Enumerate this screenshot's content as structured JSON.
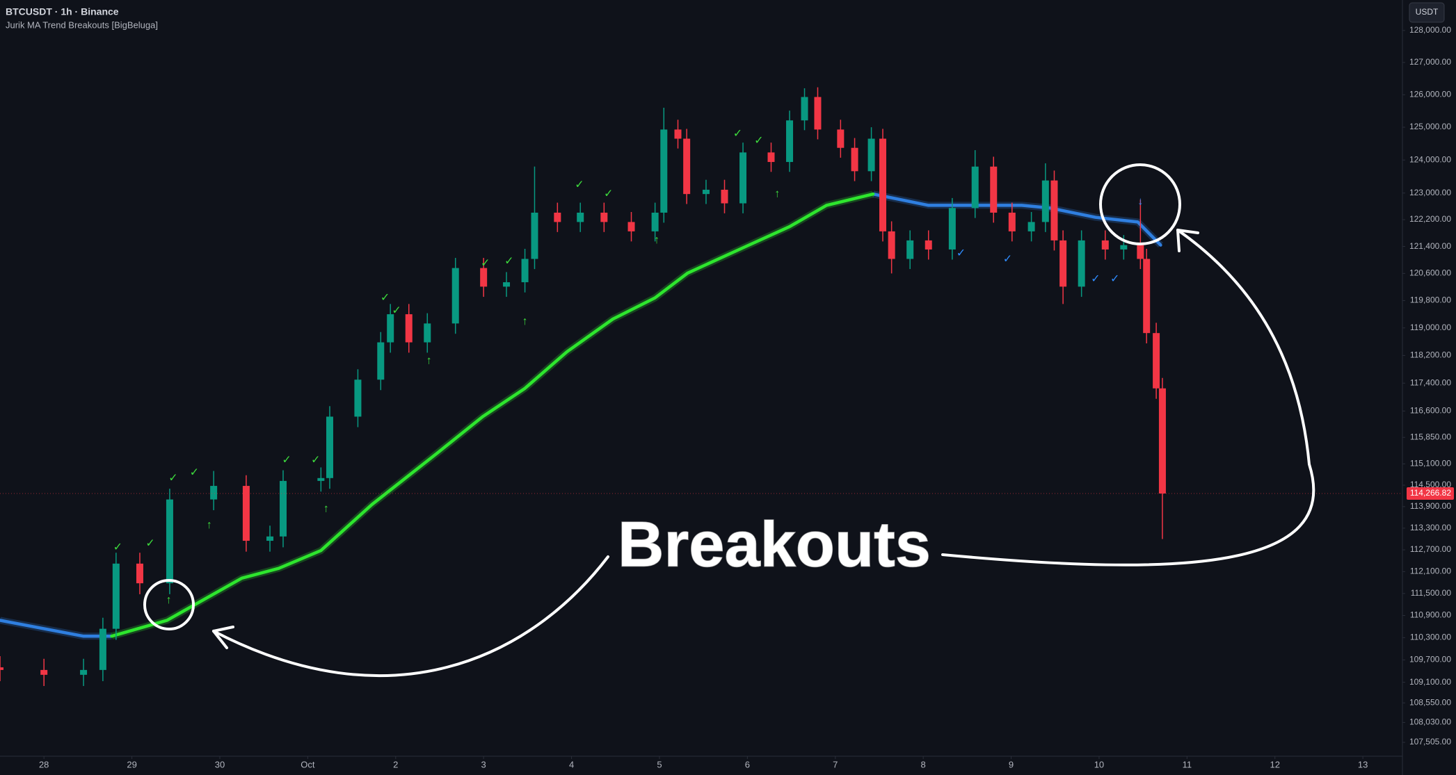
{
  "chart_data": {
    "type": "candlestick",
    "title": "BTCUSDT · 1h · Binance",
    "subtitle": "Jurik MA Trend Breakouts [BigBeluga]",
    "currency": "USDT",
    "annotation": "Breakouts",
    "log_scale": true,
    "xlim": [
      -0.5,
      15.45
    ],
    "xticks": [
      {
        "value": 0,
        "label": "28"
      },
      {
        "value": 1,
        "label": "29"
      },
      {
        "value": 2,
        "label": "30"
      },
      {
        "value": 3,
        "label": "Oct"
      },
      {
        "value": 4,
        "label": "2"
      },
      {
        "value": 5,
        "label": "3"
      },
      {
        "value": 6,
        "label": "4"
      },
      {
        "value": 7,
        "label": "5"
      },
      {
        "value": 8,
        "label": "6"
      },
      {
        "value": 9,
        "label": "7"
      },
      {
        "value": 10,
        "label": "8"
      },
      {
        "value": 11,
        "label": "9"
      },
      {
        "value": 12,
        "label": "10"
      },
      {
        "value": 13,
        "label": "11"
      },
      {
        "value": 14,
        "label": "12"
      },
      {
        "value": 15,
        "label": "13"
      }
    ],
    "ylim": [
      107140,
      128960
    ],
    "yticks": [
      {
        "value": 128000,
        "label": "128,000.00"
      },
      {
        "value": 127000,
        "label": "127,000.00"
      },
      {
        "value": 126000,
        "label": "126,000.00"
      },
      {
        "value": 125000,
        "label": "125,000.00"
      },
      {
        "value": 124000,
        "label": "124,000.00"
      },
      {
        "value": 123000,
        "label": "123,000.00"
      },
      {
        "value": 122200,
        "label": "122,200.00"
      },
      {
        "value": 121400,
        "label": "121,400.00"
      },
      {
        "value": 120600,
        "label": "120,600.00"
      },
      {
        "value": 119800,
        "label": "119,800.00"
      },
      {
        "value": 119000,
        "label": "119,000.00"
      },
      {
        "value": 118200,
        "label": "118,200.00"
      },
      {
        "value": 117400,
        "label": "117,400.00"
      },
      {
        "value": 116600,
        "label": "116,600.00"
      },
      {
        "value": 115850,
        "label": "115,850.00"
      },
      {
        "value": 115100,
        "label": "115,100.00"
      },
      {
        "value": 114500,
        "label": "114,500.00"
      },
      {
        "value": 113900,
        "label": "113,900.00"
      },
      {
        "value": 113300,
        "label": "113,300.00"
      },
      {
        "value": 112700,
        "label": "112,700.00"
      },
      {
        "value": 112100,
        "label": "112,100.00"
      },
      {
        "value": 111500,
        "label": "111,500.00"
      },
      {
        "value": 110900,
        "label": "110,900.00"
      },
      {
        "value": 110300,
        "label": "110,300.00"
      },
      {
        "value": 109700,
        "label": "109,700.00"
      },
      {
        "value": 109100,
        "label": "109,100.00"
      },
      {
        "value": 108550,
        "label": "108,550.00"
      },
      {
        "value": 108030,
        "label": "108,030.00"
      },
      {
        "value": 107505,
        "label": "107,505.00"
      }
    ],
    "last_price": {
      "value": 114266.82,
      "label": "114,266.82"
    },
    "up_color": "#089981",
    "down_color": "#f23645",
    "x": [
      -0.5,
      0.0,
      0.45,
      0.67,
      0.82,
      1.09,
      1.43,
      1.93,
      2.3,
      2.57,
      2.72,
      3.15,
      3.25,
      3.57,
      3.83,
      3.94,
      4.15,
      4.36,
      4.68,
      5.0,
      5.26,
      5.47,
      5.58,
      5.84,
      6.1,
      6.37,
      6.68,
      6.95,
      7.05,
      7.21,
      7.31,
      7.53,
      7.74,
      7.95,
      8.27,
      8.48,
      8.65,
      8.8,
      9.06,
      9.22,
      9.41,
      9.54,
      9.64,
      9.85,
      10.06,
      10.33,
      10.59,
      10.8,
      11.01,
      11.23,
      11.39,
      11.49,
      11.59,
      11.8,
      12.07,
      12.28,
      12.47,
      12.54,
      12.65,
      12.72
    ],
    "open": [
      109500,
      109430,
      109300,
      109430,
      110540,
      112320,
      111780,
      114100,
      114480,
      112950,
      113070,
      114620,
      114700,
      116440,
      117500,
      118580,
      119400,
      118580,
      119130,
      120760,
      120210,
      120340,
      121030,
      122410,
      122130,
      122410,
      122130,
      121850,
      122410,
      124930,
      124650,
      122970,
      123100,
      122690,
      124230,
      123940,
      125210,
      125930,
      124930,
      124370,
      123660,
      124650,
      121850,
      121030,
      121580,
      121310,
      122550,
      123800,
      122410,
      121850,
      122130,
      123380,
      121580,
      120210,
      121580,
      121310,
      121440,
      121030,
      118850,
      117250
    ],
    "high": [
      109800,
      109730,
      109730,
      110840,
      112620,
      112620,
      114400,
      114900,
      114780,
      113370,
      114920,
      115000,
      116740,
      117800,
      118880,
      119700,
      119700,
      119430,
      121060,
      121060,
      120640,
      121330,
      123800,
      122710,
      122710,
      122710,
      122430,
      122710,
      125600,
      125230,
      124950,
      123400,
      123400,
      124530,
      124530,
      125510,
      126200,
      126230,
      125230,
      124670,
      125000,
      124950,
      122150,
      121880,
      121880,
      122850,
      124300,
      124100,
      122710,
      122430,
      123900,
      123680,
      121880,
      121880,
      121880,
      121740,
      122800,
      121330,
      119150,
      117550
    ],
    "low": [
      109130,
      109000,
      109000,
      109130,
      110240,
      111480,
      111480,
      113800,
      112650,
      112650,
      112770,
      114320,
      114400,
      116140,
      117200,
      118280,
      118280,
      118280,
      118830,
      119910,
      119910,
      120040,
      120730,
      121830,
      121830,
      121830,
      121550,
      121550,
      122110,
      124350,
      122670,
      122670,
      122390,
      122390,
      123640,
      123640,
      124910,
      124630,
      124070,
      123360,
      123360,
      121550,
      120600,
      120730,
      121010,
      121010,
      122250,
      122110,
      121550,
      121550,
      121830,
      121280,
      119700,
      119910,
      121010,
      121010,
      120730,
      118550,
      116950,
      113000
    ],
    "close": [
      109430,
      109300,
      109430,
      110540,
      112320,
      111780,
      114100,
      114480,
      112950,
      113070,
      114620,
      114700,
      116440,
      117500,
      118580,
      119400,
      118580,
      119130,
      120760,
      120210,
      120340,
      121030,
      122410,
      122130,
      122410,
      122130,
      121850,
      122410,
      124930,
      124650,
      122970,
      123100,
      122690,
      124230,
      123940,
      125210,
      125930,
      124930,
      124370,
      123660,
      124650,
      121850,
      121030,
      121580,
      121310,
      122550,
      123800,
      122410,
      121850,
      122130,
      123380,
      121580,
      120210,
      121580,
      121310,
      121440,
      121030,
      118850,
      117250,
      114266.82
    ],
    "trend_x": [
      -0.5,
      0.45,
      0.77,
      1.4,
      2.25,
      2.67,
      3.15,
      3.73,
      4.47,
      4.99,
      5.47,
      5.95,
      6.47,
      6.95,
      7.32,
      7.95,
      8.48,
      8.9,
      9.43,
      10.06,
      10.59,
      11.12,
      11.44,
      11.96,
      12.44,
      12.7
    ],
    "trend": [
      {
        "color": "#2f7fe0",
        "values": [
          110770,
          110340,
          110340,
          null,
          null,
          null,
          null,
          null,
          null,
          null,
          null,
          null,
          null,
          null,
          null,
          null,
          null,
          null,
          122970,
          122630,
          122630,
          122630,
          122550,
          122270,
          122130,
          121440
        ]
      },
      {
        "color": "#2ee62e",
        "values": [
          null,
          null,
          110340,
          110770,
          111920,
          112190,
          112680,
          113960,
          115400,
          116440,
          117250,
          118310,
          119260,
          119880,
          120610,
          121360,
          121990,
          122630,
          122970,
          null,
          null,
          null,
          null,
          null,
          null,
          null
        ]
      }
    ],
    "signals": [
      {
        "x": 1.42,
        "price": 111310,
        "label": "↑",
        "color": "#3ddc3d"
      },
      {
        "x": 1.88,
        "price": 113380,
        "label": "↑",
        "color": "#3ddc3d"
      },
      {
        "x": 3.21,
        "price": 113830,
        "label": "↑",
        "color": "#3ddc3d"
      },
      {
        "x": 4.38,
        "price": 118040,
        "label": "↑",
        "color": "#3ddc3d"
      },
      {
        "x": 5.47,
        "price": 119180,
        "label": "↑",
        "color": "#3ddc3d"
      },
      {
        "x": 6.97,
        "price": 121580,
        "label": "↑",
        "color": "#3ddc3d"
      },
      {
        "x": 8.34,
        "price": 122970,
        "label": "↑",
        "color": "#3ddc3d"
      },
      {
        "x": 12.47,
        "price": 122740,
        "label": "↓",
        "color": "#2f8cff"
      },
      {
        "x": 0.84,
        "price": 112760,
        "label": "✓",
        "color": "#3ddc3d"
      },
      {
        "x": 1.21,
        "price": 112870,
        "label": "✓",
        "color": "#3ddc3d"
      },
      {
        "x": 1.47,
        "price": 114690,
        "label": "✓",
        "color": "#3ddc3d"
      },
      {
        "x": 1.71,
        "price": 114850,
        "label": "✓",
        "color": "#3ddc3d"
      },
      {
        "x": 2.76,
        "price": 115200,
        "label": "✓",
        "color": "#3ddc3d"
      },
      {
        "x": 3.09,
        "price": 115200,
        "label": "✓",
        "color": "#3ddc3d"
      },
      {
        "x": 3.88,
        "price": 119880,
        "label": "✓",
        "color": "#3ddc3d"
      },
      {
        "x": 4.01,
        "price": 119500,
        "label": "✓",
        "color": "#3ddc3d"
      },
      {
        "x": 5.02,
        "price": 120890,
        "label": "✓",
        "color": "#3ddc3d"
      },
      {
        "x": 5.29,
        "price": 120950,
        "label": "✓",
        "color": "#3ddc3d"
      },
      {
        "x": 6.09,
        "price": 123240,
        "label": "✓",
        "color": "#3ddc3d"
      },
      {
        "x": 6.42,
        "price": 122970,
        "label": "✓",
        "color": "#3ddc3d"
      },
      {
        "x": 7.89,
        "price": 124790,
        "label": "✓",
        "color": "#3ddc3d"
      },
      {
        "x": 8.13,
        "price": 124580,
        "label": "✓",
        "color": "#3ddc3d"
      },
      {
        "x": 10.43,
        "price": 121190,
        "label": "✓",
        "color": "#2f8cff"
      },
      {
        "x": 10.96,
        "price": 121010,
        "label": "✓",
        "color": "#2f8cff"
      },
      {
        "x": 11.96,
        "price": 120430,
        "label": "✓",
        "color": "#2f8cff"
      },
      {
        "x": 12.18,
        "price": 120430,
        "label": "✓",
        "color": "#2f8cff"
      }
    ]
  }
}
